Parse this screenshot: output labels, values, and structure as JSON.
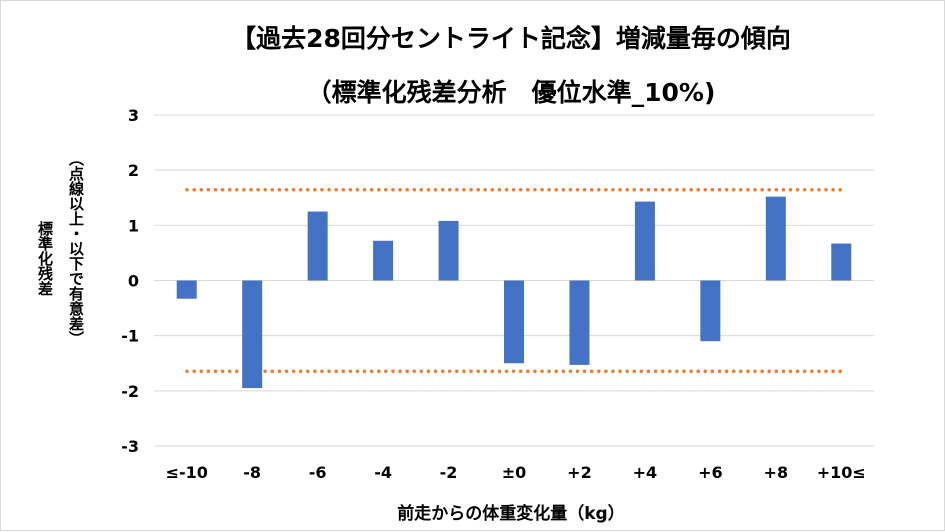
{
  "chart_data": {
    "type": "bar",
    "title": "【過去28回分セントライト記念】増減量毎の傾向",
    "subtitle": "（標準化残差分析　優位水準_10%)",
    "xlabel": "前走からの体重変化量（kg）",
    "ylabel_main": "標準化残差",
    "ylabel_sub": "（点線以上・以下で有意差）",
    "categories": [
      "≤-10",
      "-8",
      "-6",
      "-4",
      "-2",
      "±0",
      "+2",
      "+4",
      "+6",
      "+8",
      "+10≤"
    ],
    "values": [
      -0.33,
      -1.95,
      1.25,
      0.72,
      1.08,
      -1.5,
      -1.53,
      1.43,
      -1.1,
      1.52,
      0.67
    ],
    "ylim": [
      -3,
      3
    ],
    "yticks": [
      3,
      2,
      1,
      0,
      -1,
      -2,
      -3
    ],
    "reference_lines": [
      1.645,
      -1.645
    ],
    "grid": true,
    "colors": {
      "bar": "#4472c4",
      "reference": "#ed7d31",
      "grid": "#d9d9d9"
    }
  }
}
